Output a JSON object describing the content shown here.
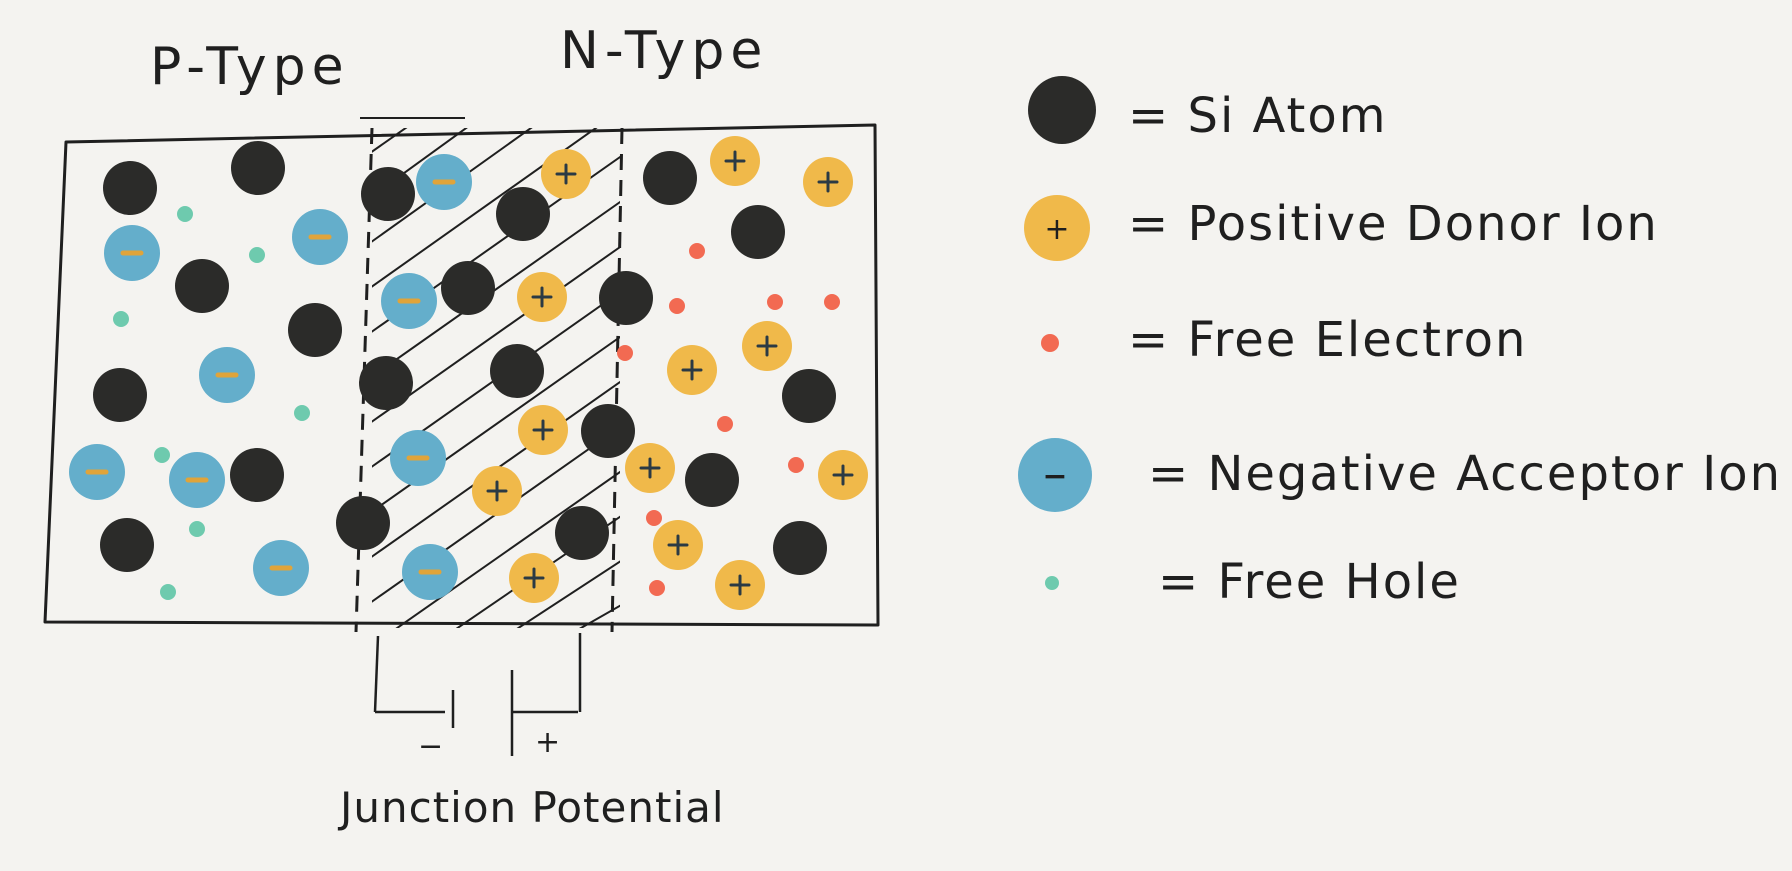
{
  "diagram": {
    "p_type_label": "P-Type",
    "n_type_label": "N-Type",
    "junction_label": "Junction Potential",
    "junction_minus": "−",
    "junction_plus": "+",
    "ion_plus_sign": "+",
    "ion_minus_sign": "−"
  },
  "legend": {
    "items": [
      {
        "icon": "si-atom-icon",
        "text": "= Si Atom"
      },
      {
        "icon": "positive-donor-ion-icon",
        "text": "= Positive Donor Ion"
      },
      {
        "icon": "free-electron-icon",
        "text": "= Free Electron"
      },
      {
        "icon": "negative-acceptor-ion-icon",
        "text": "= Negative Acceptor Ion"
      },
      {
        "icon": "free-hole-icon",
        "text": "= Free Hole"
      }
    ]
  },
  "colors": {
    "background": "#f4f3f0",
    "ink": "#1f1f1f",
    "si_atom": "#2b2b29",
    "donor": "#f0b94a",
    "acceptor": "#64aecb",
    "electron": "#f26a52",
    "hole": "#6ecaae",
    "acceptor_dash": "#e0a43a"
  }
}
